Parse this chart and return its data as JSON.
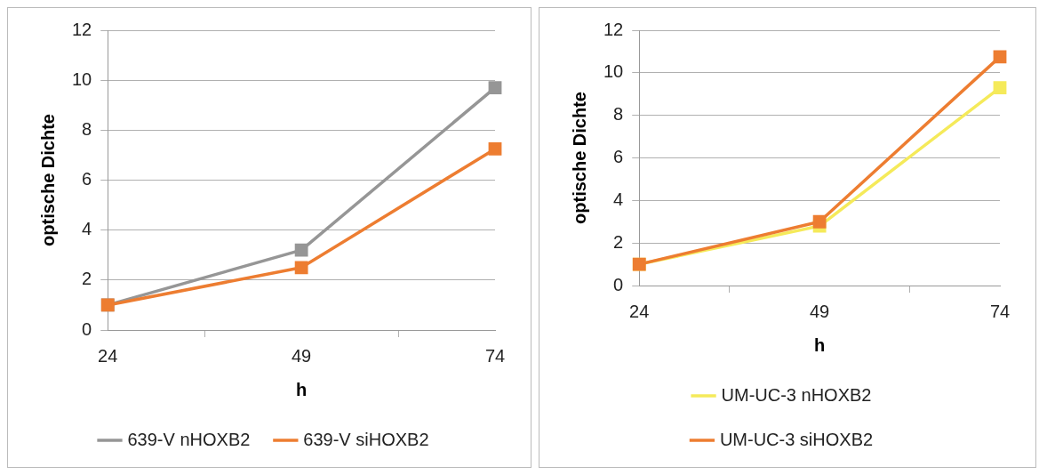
{
  "chart_data": [
    {
      "type": "line",
      "xlabel": "h",
      "ylabel": "optische Dichte",
      "categories": [
        "24",
        "49",
        "74"
      ],
      "ylim": [
        0,
        12
      ],
      "yticks": [
        0,
        2,
        4,
        6,
        8,
        10,
        12
      ],
      "grid": "y",
      "legend": "bottom",
      "marker": "square",
      "series": [
        {
          "name": "639-V nHOXB2",
          "color": "#969696",
          "values": [
            1,
            3.2,
            9.7
          ]
        },
        {
          "name": "639-V siHOXB2",
          "color": "#ed7d31",
          "values": [
            1,
            2.5,
            7.25
          ]
        }
      ]
    },
    {
      "type": "line",
      "xlabel": "h",
      "ylabel": "optische Dichte",
      "categories": [
        "24",
        "49",
        "74"
      ],
      "ylim": [
        0,
        12
      ],
      "yticks": [
        0,
        2,
        4,
        6,
        8,
        10,
        12
      ],
      "grid": "y",
      "legend": "bottom",
      "marker": "square",
      "series": [
        {
          "name": "UM-UC-3 nHOXB2",
          "color": "#f5ea5a",
          "values": [
            1,
            2.8,
            9.3
          ]
        },
        {
          "name": "UM-UC-3 siHOXB2",
          "color": "#ed7d31",
          "values": [
            1,
            3,
            10.75
          ]
        }
      ]
    }
  ]
}
